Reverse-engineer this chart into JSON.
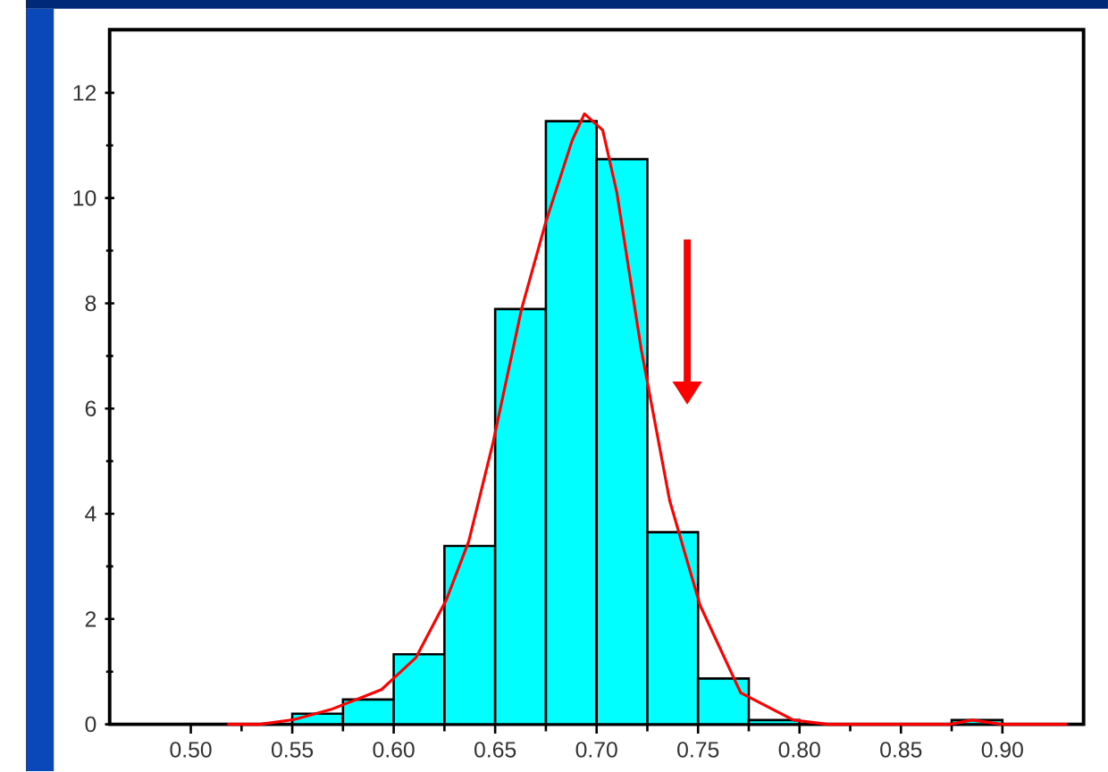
{
  "chart_data": {
    "type": "histogram",
    "bins": [
      0.55,
      0.575,
      0.6,
      0.625,
      0.65,
      0.675,
      0.7,
      0.725,
      0.75,
      0.775,
      0.8,
      0.825,
      0.85,
      0.875,
      0.9
    ],
    "values": [
      0.2,
      0.47,
      1.33,
      3.39,
      7.89,
      11.46,
      10.74,
      3.65,
      0.87,
      0.08,
      0,
      0,
      0,
      0.08
    ],
    "color": "#00ffff",
    "series": [
      {
        "type": "line",
        "color": "#ff0000",
        "x": [
          0.518,
          0.534,
          0.551,
          0.569,
          0.594,
          0.611,
          0.626,
          0.637,
          0.649,
          0.663,
          0.675,
          0.688,
          0.694,
          0.703,
          0.71,
          0.722,
          0.736,
          0.751,
          0.771,
          0.797,
          0.814,
          0.874,
          0.885,
          0.9,
          0.932
        ],
        "values": [
          0,
          0,
          0.09,
          0.28,
          0.66,
          1.27,
          2.37,
          3.48,
          5.36,
          7.89,
          9.55,
          11.1,
          11.6,
          11.29,
          10.1,
          7.12,
          4.25,
          2.26,
          0.6,
          0.08,
          0,
          0,
          0.08,
          0,
          0
        ]
      }
    ],
    "xlim": [
      0.46,
      0.94
    ],
    "ylim": [
      0,
      13.2
    ],
    "xticks": [
      {
        "value": 0.5,
        "label": "0.50"
      },
      {
        "value": 0.55,
        "label": "0.55"
      },
      {
        "value": 0.6,
        "label": "0.60"
      },
      {
        "value": 0.65,
        "label": "0.65"
      },
      {
        "value": 0.7,
        "label": "0.70"
      },
      {
        "value": 0.75,
        "label": "0.75"
      },
      {
        "value": 0.8,
        "label": "0.80"
      },
      {
        "value": 0.85,
        "label": "0.85"
      },
      {
        "value": 0.9,
        "label": "0.90"
      }
    ],
    "yticks": [
      0,
      2,
      4,
      6,
      8,
      10,
      12
    ]
  }
}
